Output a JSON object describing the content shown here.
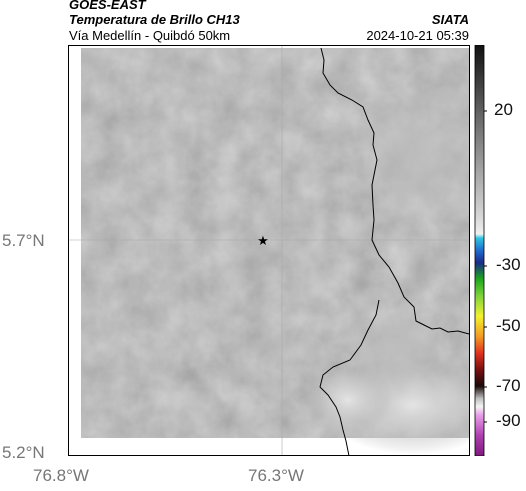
{
  "header": {
    "satellite": "GOES-EAST",
    "product": "Temperatura de Brillo CH13",
    "organization": "SIATA",
    "region": "Vía Medellín - Quibdó 50km",
    "timestamp": "2024-10-21 05:39"
  },
  "map": {
    "y_ticks": [
      "5.7°N",
      "5.2°N"
    ],
    "x_ticks": [
      "76.8°W",
      "76.3°W"
    ],
    "marker": "star-icon",
    "colors": {
      "cloud_gray": "#8c8c8c",
      "border_line": "#000000",
      "gridline": "#b0b0b0"
    }
  },
  "colorbar": {
    "ticks": [
      "20",
      "-30",
      "-50",
      "-70",
      "-90"
    ],
    "unit_scale_note": ""
  }
}
